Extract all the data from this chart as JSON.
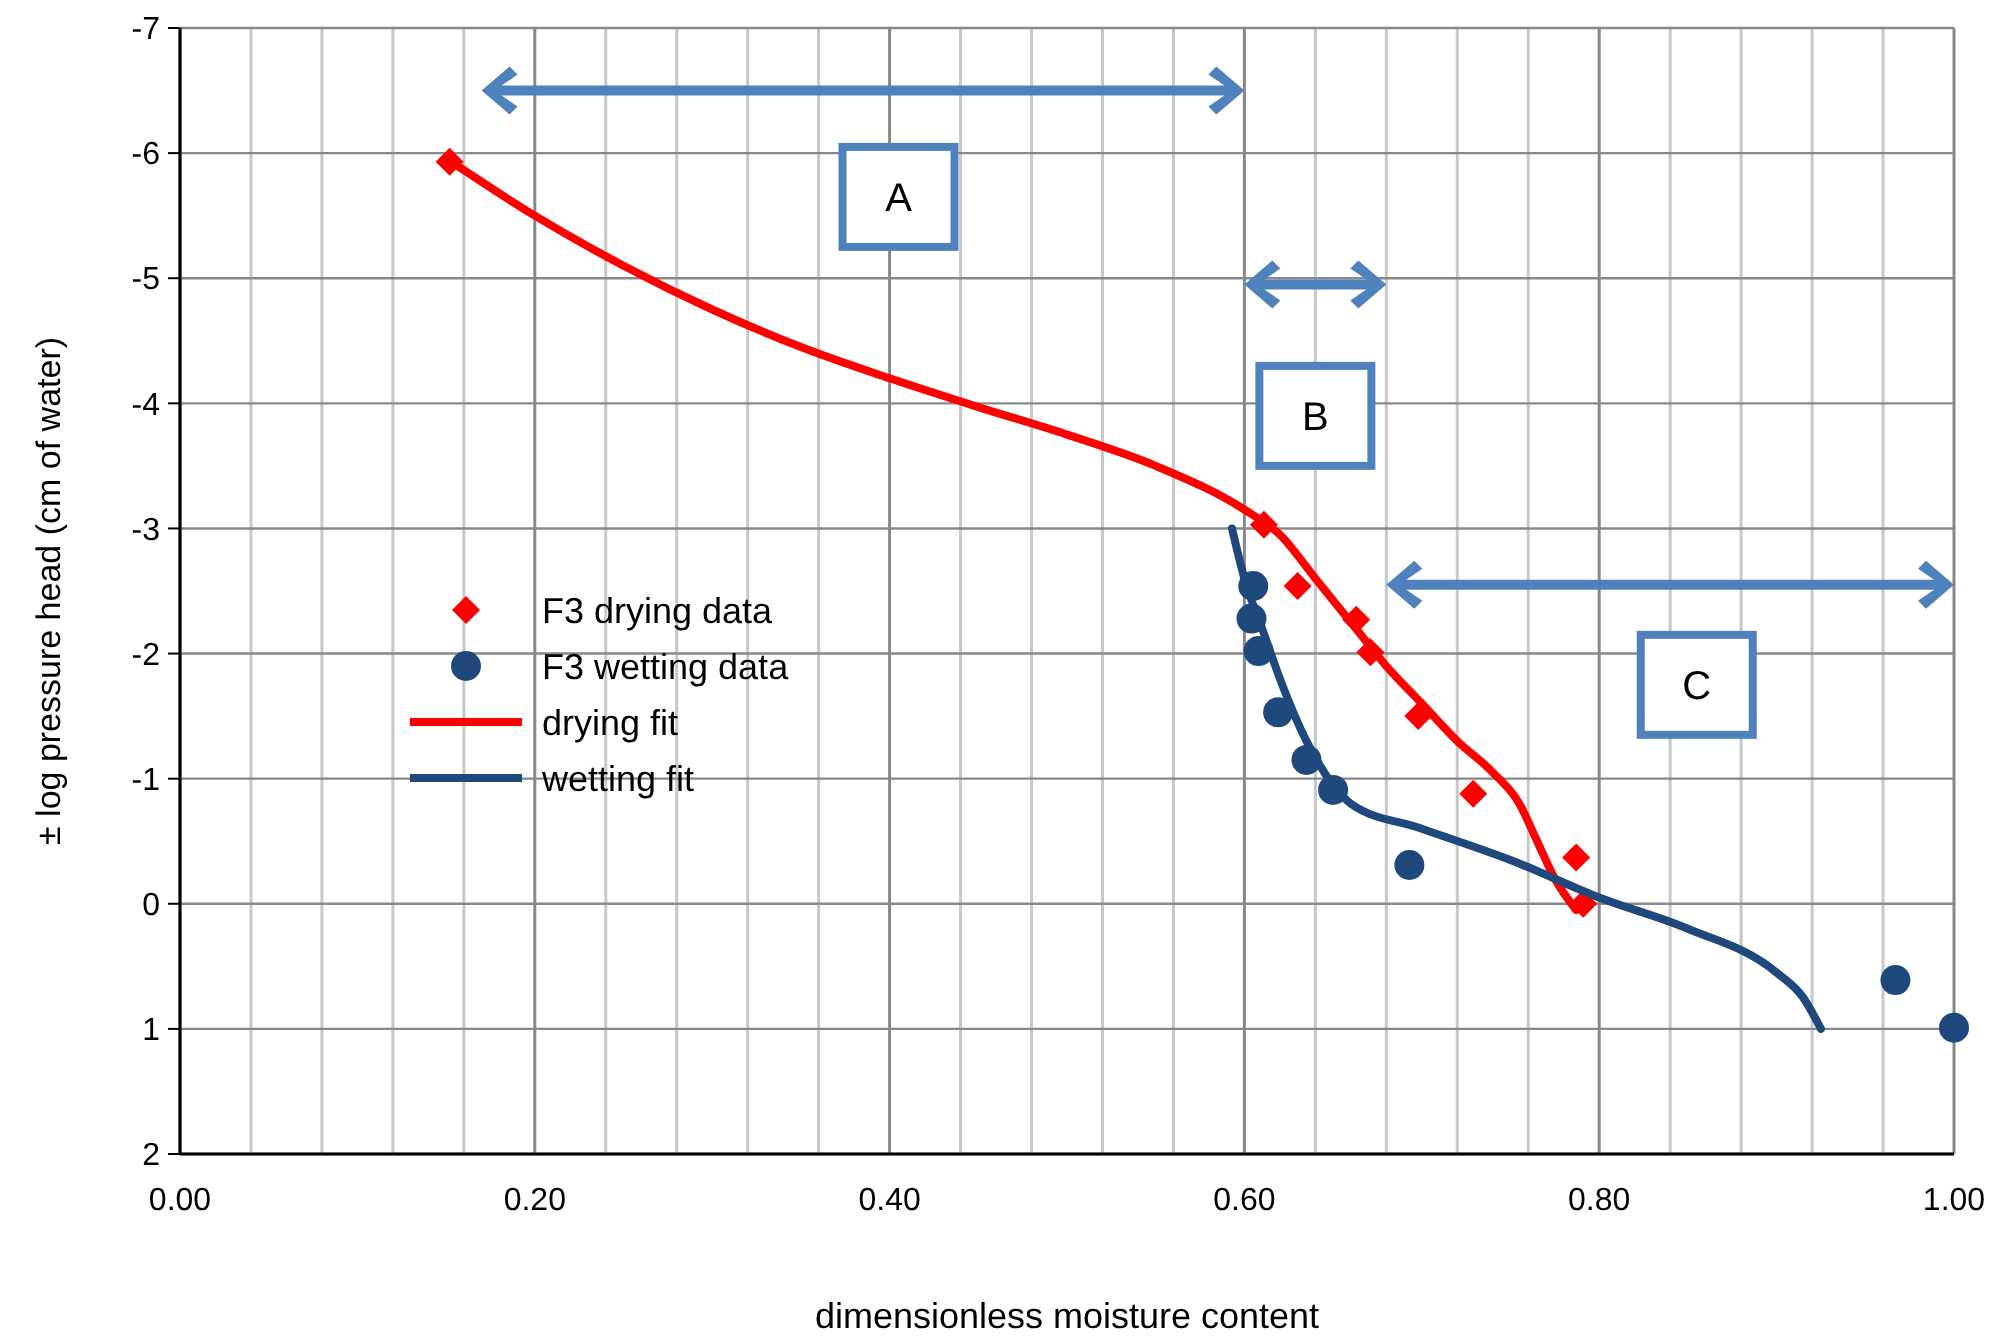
{
  "chart_data": {
    "type": "scatter",
    "xlabel": "dimensionless  moisture content",
    "ylabel": "± log pressure head (cm of water)",
    "xlim": [
      0,
      1
    ],
    "ylim": [
      2,
      -7
    ],
    "xticks": [
      {
        "value": 0,
        "label": "0.00"
      },
      {
        "value": 0.04,
        "label": null
      },
      {
        "value": 0.08,
        "label": null
      },
      {
        "value": 0.12,
        "label": null
      },
      {
        "value": 0.16,
        "label": null
      },
      {
        "value": 0.2,
        "label": "0.20"
      },
      {
        "value": 0.24,
        "label": null
      },
      {
        "value": 0.28,
        "label": null
      },
      {
        "value": 0.32,
        "label": null
      },
      {
        "value": 0.36,
        "label": null
      },
      {
        "value": 0.4,
        "label": "0.40"
      },
      {
        "value": 0.44,
        "label": null
      },
      {
        "value": 0.48,
        "label": null
      },
      {
        "value": 0.52,
        "label": null
      },
      {
        "value": 0.56,
        "label": null
      },
      {
        "value": 0.6,
        "label": "0.60"
      },
      {
        "value": 0.64,
        "label": null
      },
      {
        "value": 0.68,
        "label": null
      },
      {
        "value": 0.72,
        "label": null
      },
      {
        "value": 0.76,
        "label": null
      },
      {
        "value": 0.8,
        "label": "0.80"
      },
      {
        "value": 0.84,
        "label": null
      },
      {
        "value": 0.88,
        "label": null
      },
      {
        "value": 0.92,
        "label": null
      },
      {
        "value": 0.96,
        "label": null
      },
      {
        "value": 1,
        "label": "1.00"
      }
    ],
    "yticks": [
      -7,
      -6,
      -5,
      -4,
      -3,
      -2,
      -1,
      0,
      1,
      2
    ],
    "grid": true,
    "legend": "left",
    "series": [
      {
        "name": "F3 drying data",
        "marker": "diamond",
        "color": "#ff0000",
        "x": [
          0.152,
          0.611,
          0.63,
          0.663,
          0.671,
          0.698,
          0.729,
          0.787,
          0.791
        ],
        "values": [
          -5.93,
          -3.03,
          -2.54,
          -2.27,
          -2.01,
          -1.5,
          -0.88,
          -0.37,
          0.0
        ]
      },
      {
        "name": "F3 wetting data",
        "marker": "circle",
        "color": "#1f497d",
        "x": [
          0.605,
          0.604,
          0.608,
          0.619,
          0.635,
          0.65,
          0.693,
          0.967,
          1.0
        ],
        "values": [
          -2.54,
          -2.28,
          -2.02,
          -1.53,
          -1.15,
          -0.91,
          -0.31,
          0.61,
          0.99
        ]
      },
      {
        "name": "drying fit",
        "type": "line",
        "marker": "none",
        "color": "#ff0000",
        "x": [
          0.153,
          0.2,
          0.25,
          0.3,
          0.35,
          0.4,
          0.45,
          0.5,
          0.55,
          0.6,
          0.62,
          0.64,
          0.66,
          0.68,
          0.7,
          0.72,
          0.74,
          0.755,
          0.765,
          0.775,
          0.787
        ],
        "values": [
          -5.93,
          -5.5,
          -5.1,
          -4.75,
          -4.45,
          -4.2,
          -3.97,
          -3.75,
          -3.5,
          -3.15,
          -2.95,
          -2.6,
          -2.25,
          -1.9,
          -1.6,
          -1.3,
          -1.05,
          -0.8,
          -0.5,
          -0.2,
          0.05
        ]
      },
      {
        "name": "wetting fit",
        "type": "line",
        "marker": "none",
        "color": "#1f497d",
        "x": [
          0.593,
          0.6,
          0.61,
          0.62,
          0.635,
          0.65,
          0.66,
          0.7,
          0.75,
          0.8,
          0.85,
          0.9,
          0.915,
          0.925
        ],
        "values": [
          -3.0,
          -2.6,
          -2.2,
          -1.8,
          -1.3,
          -0.95,
          -0.8,
          -0.6,
          -0.35,
          -0.05,
          0.2,
          0.55,
          0.75,
          1.0
        ]
      }
    ],
    "annotations": [
      "A",
      "B",
      "C"
    ]
  }
}
